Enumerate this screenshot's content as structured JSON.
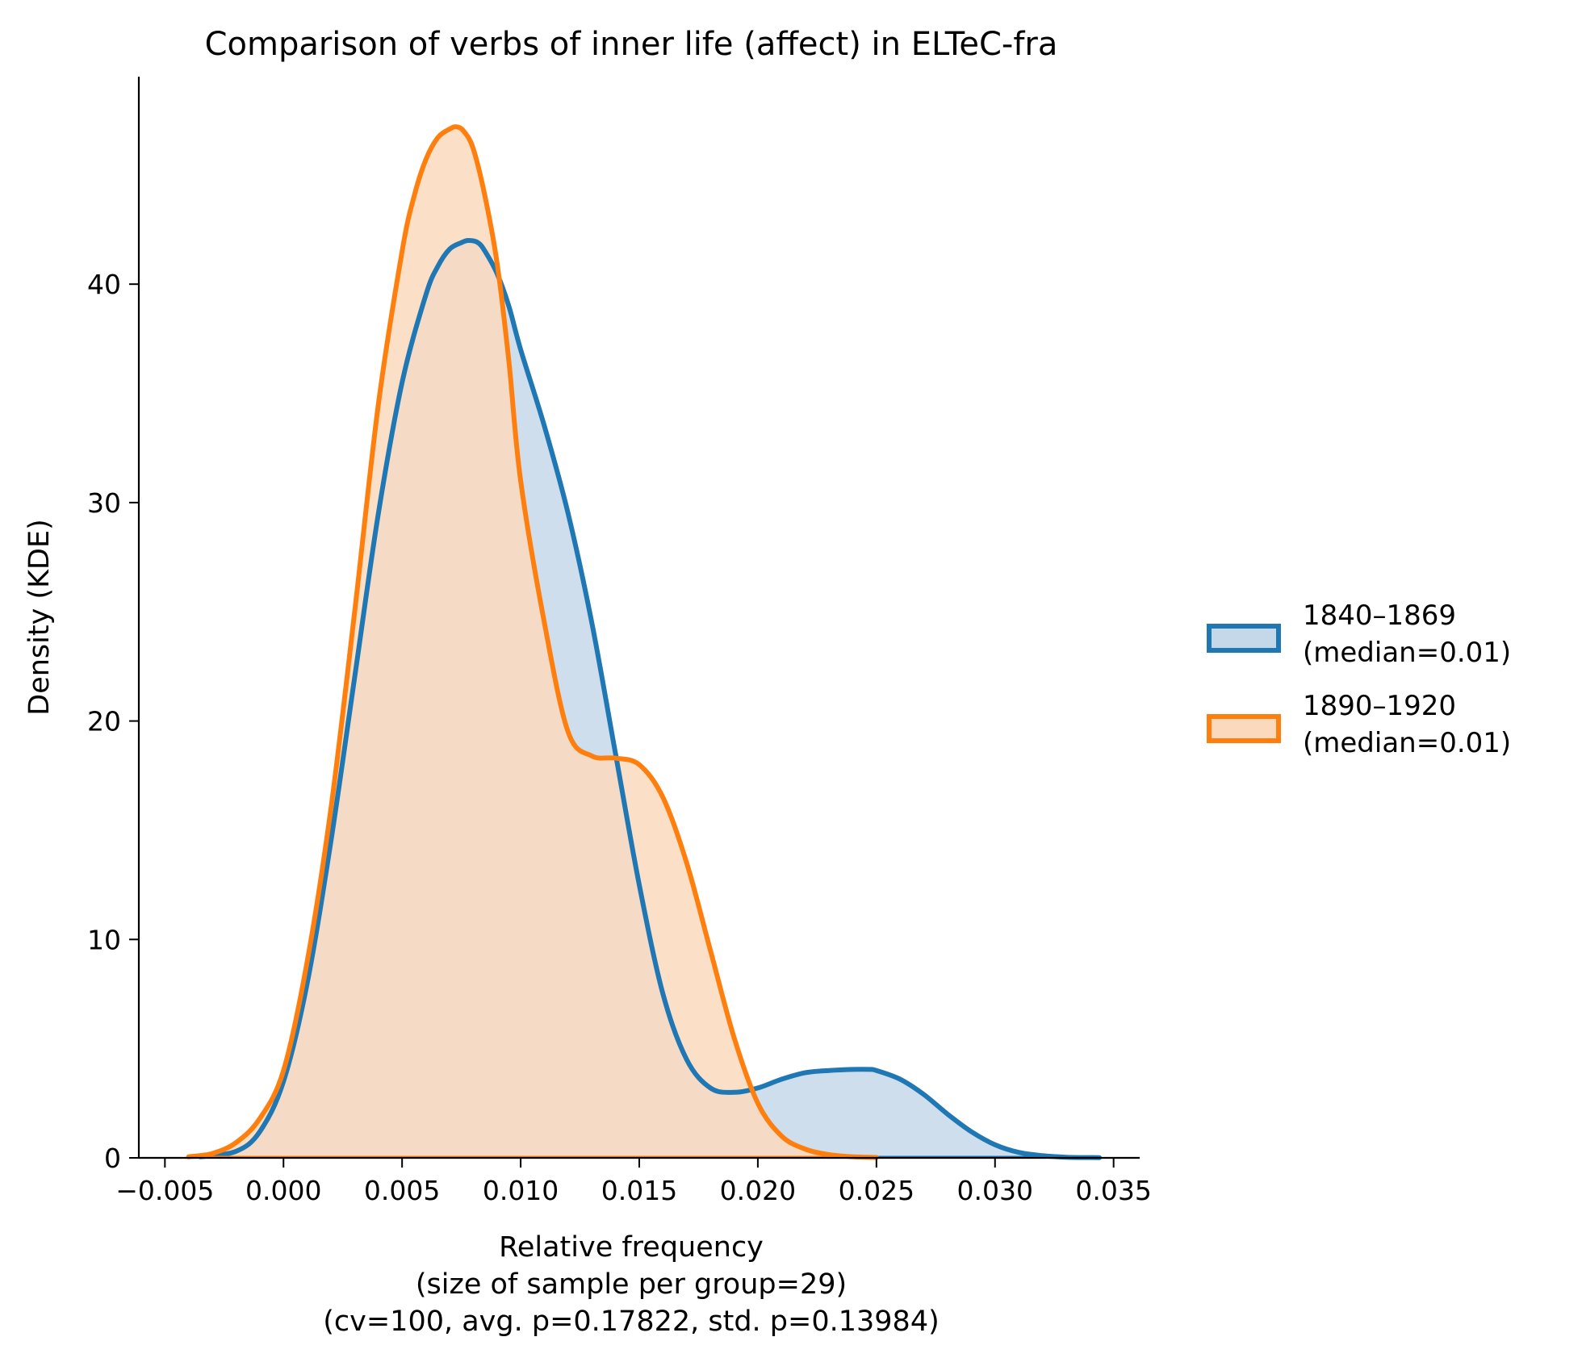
{
  "chart_data": {
    "type": "area",
    "title": "Comparison of verbs of inner life (affect) in ELTeC-fra",
    "xlabel_lines": [
      "Relative frequency",
      "(size of sample per group=29)",
      "(cv=100, avg. p=0.17822, std. p=0.13984)"
    ],
    "ylabel": "Density (KDE)",
    "xlim": [
      -0.0061,
      0.0361
    ],
    "ylim": [
      0,
      49.5
    ],
    "x_ticks": [
      -0.005,
      0.0,
      0.005,
      0.01,
      0.015,
      0.02,
      0.025,
      0.03,
      0.035
    ],
    "x_tick_labels": [
      "−0.005",
      "0.000",
      "0.005",
      "0.010",
      "0.015",
      "0.020",
      "0.025",
      "0.030",
      "0.035"
    ],
    "y_ticks": [
      0,
      10,
      20,
      30,
      40
    ],
    "y_tick_labels": [
      "0",
      "10",
      "20",
      "30",
      "40"
    ],
    "grid": false,
    "legend_position": "right",
    "series": [
      {
        "name": "1840–1869\n(median=0.01)",
        "name_lines": [
          "1840–1869",
          "(median=0.01)"
        ],
        "color": "#1f77b4",
        "fill": "#c5d8ea",
        "x": [
          -0.0035,
          -0.002,
          -0.001,
          0.0,
          0.001,
          0.002,
          0.003,
          0.004,
          0.005,
          0.006,
          0.0065,
          0.007,
          0.0075,
          0.0078,
          0.0082,
          0.0085,
          0.009,
          0.0095,
          0.01,
          0.011,
          0.012,
          0.013,
          0.014,
          0.015,
          0.016,
          0.017,
          0.018,
          0.019,
          0.02,
          0.021,
          0.022,
          0.023,
          0.024,
          0.0247,
          0.025,
          0.026,
          0.027,
          0.028,
          0.029,
          0.03,
          0.031,
          0.032,
          0.033,
          0.0344
        ],
        "y": [
          0.05,
          0.3,
          1.2,
          3.5,
          8.0,
          14.5,
          22.0,
          29.5,
          35.5,
          39.5,
          40.8,
          41.6,
          41.9,
          42.0,
          41.9,
          41.5,
          40.5,
          39.0,
          37.0,
          33.5,
          29.5,
          24.5,
          18.5,
          12.5,
          7.5,
          4.5,
          3.2,
          3.0,
          3.2,
          3.6,
          3.9,
          4.0,
          4.05,
          4.05,
          4.0,
          3.6,
          2.9,
          2.0,
          1.2,
          0.6,
          0.25,
          0.1,
          0.03,
          0.01
        ]
      },
      {
        "name": "1890–1920\n(median=0.01)",
        "name_lines": [
          "1890–1920",
          "(median=0.01)"
        ],
        "color": "#ff7f0e",
        "fill": "#fbd9bd",
        "x": [
          -0.004,
          -0.003,
          -0.002,
          -0.001,
          0.0,
          0.001,
          0.002,
          0.003,
          0.004,
          0.005,
          0.0055,
          0.006,
          0.0065,
          0.007,
          0.0073,
          0.0076,
          0.008,
          0.0085,
          0.009,
          0.0095,
          0.01,
          0.011,
          0.012,
          0.013,
          0.014,
          0.015,
          0.016,
          0.017,
          0.018,
          0.019,
          0.02,
          0.021,
          0.022,
          0.023,
          0.024,
          0.025
        ],
        "y": [
          0.05,
          0.2,
          0.7,
          1.8,
          4.0,
          9.0,
          16.0,
          25.0,
          34.5,
          41.5,
          44.0,
          45.7,
          46.7,
          47.1,
          47.2,
          47.0,
          46.2,
          44.0,
          41.0,
          36.5,
          31.0,
          24.5,
          19.5,
          18.4,
          18.3,
          18.0,
          16.5,
          13.5,
          9.5,
          5.5,
          2.5,
          1.0,
          0.4,
          0.15,
          0.05,
          0.02
        ]
      }
    ]
  }
}
